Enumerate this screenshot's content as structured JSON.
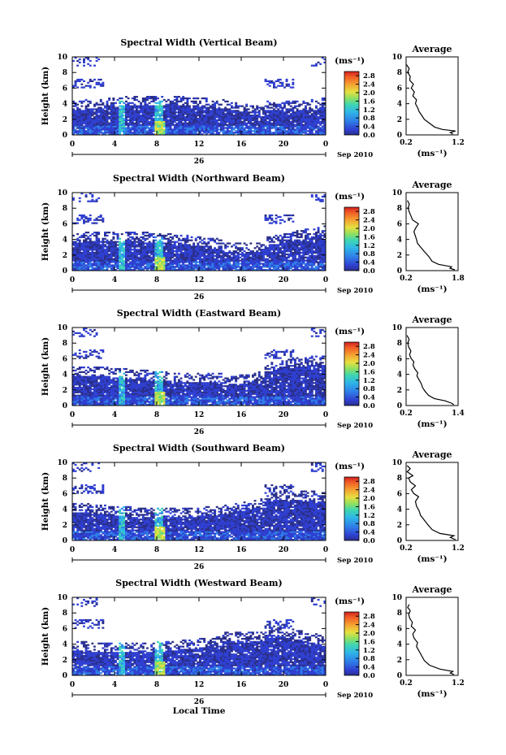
{
  "chart_data": [
    {
      "type": "heatmap",
      "title": "Spectral Width (Vertical Beam)",
      "ylabel": "Height (km)",
      "x_ticks": [
        "0",
        "4",
        "8",
        "12",
        "16",
        "20",
        "0"
      ],
      "y_ticks": [
        "0",
        "2",
        "4",
        "6",
        "8",
        "10"
      ],
      "xlim": [
        0,
        24
      ],
      "ylim": [
        0,
        10
      ],
      "date_label": "26",
      "date_suffix": "Sep 2010",
      "colorbar": {
        "label": "(ms⁻¹)",
        "ticks": [
          "2.8",
          "2.4",
          "2.0",
          "1.6",
          "1.2",
          "0.8",
          "0.4",
          "0.0"
        ],
        "range": [
          0,
          3.0
        ]
      },
      "profile": {
        "title": "Average",
        "xlabel": "(ms⁻¹)",
        "x_ticks": [
          "0.2",
          "1.2"
        ],
        "xlim": [
          0.2,
          1.2
        ],
        "y_ticks": [
          "0",
          "2",
          "4",
          "6",
          "8",
          "10"
        ],
        "points": [
          [
            1.1,
            0.1
          ],
          [
            1.05,
            0.3
          ],
          [
            1.15,
            0.5
          ],
          [
            0.9,
            0.7
          ],
          [
            0.75,
            1.0
          ],
          [
            0.65,
            1.5
          ],
          [
            0.55,
            2.0
          ],
          [
            0.5,
            2.5
          ],
          [
            0.45,
            3.0
          ],
          [
            0.42,
            3.5
          ],
          [
            0.38,
            4.0
          ],
          [
            0.4,
            4.5
          ],
          [
            0.33,
            5.0
          ],
          [
            0.36,
            5.5
          ],
          [
            0.3,
            6.0
          ],
          [
            0.34,
            6.5
          ],
          [
            0.27,
            7.0
          ],
          [
            0.28,
            7.5
          ],
          [
            0.23,
            8.0
          ],
          [
            0.26,
            8.5
          ],
          [
            0.21,
            9.0
          ]
        ]
      }
    },
    {
      "type": "heatmap",
      "title": "Spectral Width (Northward Beam)",
      "ylabel": "Height (km)",
      "x_ticks": [
        "0",
        "4",
        "8",
        "12",
        "16",
        "20",
        "0"
      ],
      "y_ticks": [
        "0",
        "2",
        "4",
        "6",
        "8",
        "10"
      ],
      "xlim": [
        0,
        24
      ],
      "ylim": [
        0,
        10
      ],
      "date_label": "26",
      "date_suffix": "Sep 2010",
      "colorbar": {
        "label": "(ms⁻¹)",
        "ticks": [
          "2.8",
          "2.4",
          "2.0",
          "1.6",
          "1.2",
          "0.8",
          "0.4",
          "0.0"
        ],
        "range": [
          0,
          3.0
        ]
      },
      "profile": {
        "title": "Average",
        "xlabel": "(ms⁻¹)",
        "x_ticks": [
          "0.2",
          "1.8"
        ],
        "xlim": [
          0.2,
          1.8
        ],
        "y_ticks": [
          "0",
          "2",
          "4",
          "6",
          "8",
          "10"
        ],
        "points": [
          [
            1.7,
            0.1
          ],
          [
            1.55,
            0.3
          ],
          [
            1.6,
            0.5
          ],
          [
            1.2,
            0.8
          ],
          [
            1.0,
            1.2
          ],
          [
            0.9,
            1.8
          ],
          [
            0.75,
            2.5
          ],
          [
            0.65,
            3.0
          ],
          [
            0.55,
            3.5
          ],
          [
            0.52,
            4.0
          ],
          [
            0.48,
            4.5
          ],
          [
            0.44,
            5.0
          ],
          [
            0.5,
            5.5
          ],
          [
            0.58,
            6.0
          ],
          [
            0.4,
            6.5
          ],
          [
            0.35,
            7.0
          ],
          [
            0.3,
            7.5
          ],
          [
            0.26,
            8.0
          ],
          [
            0.3,
            8.5
          ],
          [
            0.24,
            9.0
          ]
        ]
      }
    },
    {
      "type": "heatmap",
      "title": "Spectral Width (Eastward Beam)",
      "ylabel": "Height (km)",
      "x_ticks": [
        "0",
        "4",
        "8",
        "12",
        "16",
        "20",
        "0"
      ],
      "y_ticks": [
        "0",
        "2",
        "4",
        "6",
        "8",
        "10"
      ],
      "xlim": [
        0,
        24
      ],
      "ylim": [
        0,
        10
      ],
      "date_label": "26",
      "date_suffix": "Sep 2010",
      "colorbar": {
        "label": "(ms⁻¹)",
        "ticks": [
          "2.8",
          "2.4",
          "2.0",
          "1.6",
          "1.2",
          "0.8",
          "0.4",
          "0.0"
        ],
        "range": [
          0,
          3.0
        ]
      },
      "profile": {
        "title": "Average",
        "xlabel": "(ms⁻¹)",
        "x_ticks": [
          "0.2",
          "1.4"
        ],
        "xlim": [
          0.2,
          1.4
        ],
        "y_ticks": [
          "0",
          "2",
          "4",
          "6",
          "8",
          "10"
        ],
        "points": [
          [
            1.3,
            0.1
          ],
          [
            1.25,
            0.3
          ],
          [
            1.1,
            0.6
          ],
          [
            0.85,
            0.9
          ],
          [
            0.72,
            1.3
          ],
          [
            0.64,
            1.8
          ],
          [
            0.58,
            2.3
          ],
          [
            0.55,
            2.8
          ],
          [
            0.5,
            3.3
          ],
          [
            0.45,
            3.8
          ],
          [
            0.47,
            4.2
          ],
          [
            0.4,
            4.7
          ],
          [
            0.36,
            5.2
          ],
          [
            0.38,
            5.6
          ],
          [
            0.32,
            6.0
          ],
          [
            0.28,
            6.5
          ],
          [
            0.31,
            7.0
          ],
          [
            0.26,
            7.5
          ],
          [
            0.24,
            8.0
          ],
          [
            0.27,
            8.5
          ],
          [
            0.22,
            9.0
          ]
        ]
      }
    },
    {
      "type": "heatmap",
      "title": "Spectral Width (Southward Beam)",
      "ylabel": "Height (km)",
      "x_ticks": [
        "0",
        "4",
        "8",
        "12",
        "16",
        "20",
        "0"
      ],
      "y_ticks": [
        "0",
        "2",
        "4",
        "6",
        "8",
        "10"
      ],
      "xlim": [
        0,
        24
      ],
      "ylim": [
        0,
        10
      ],
      "date_label": "26",
      "date_suffix": "Sep 2010",
      "colorbar": {
        "label": "(ms⁻¹)",
        "ticks": [
          "2.8",
          "2.4",
          "2.0",
          "1.6",
          "1.2",
          "0.8",
          "0.4",
          "0.0"
        ],
        "range": [
          0,
          3.0
        ]
      },
      "profile": {
        "title": "Average",
        "xlabel": "(ms⁻¹)",
        "x_ticks": [
          "0.2",
          "1.2"
        ],
        "xlim": [
          0.2,
          1.2
        ],
        "y_ticks": [
          "0",
          "2",
          "4",
          "6",
          "8",
          "10"
        ],
        "points": [
          [
            1.15,
            0.1
          ],
          [
            1.05,
            0.4
          ],
          [
            1.12,
            0.6
          ],
          [
            0.85,
            0.9
          ],
          [
            0.7,
            1.4
          ],
          [
            0.62,
            2.0
          ],
          [
            0.55,
            2.6
          ],
          [
            0.48,
            3.2
          ],
          [
            0.45,
            3.8
          ],
          [
            0.4,
            4.4
          ],
          [
            0.38,
            5.0
          ],
          [
            0.44,
            5.6
          ],
          [
            0.35,
            6.0
          ],
          [
            0.3,
            6.5
          ],
          [
            0.38,
            7.0
          ],
          [
            0.28,
            7.5
          ],
          [
            0.25,
            8.0
          ],
          [
            0.33,
            8.3
          ],
          [
            0.22,
            8.8
          ],
          [
            0.28,
            9.2
          ],
          [
            0.22,
            9.6
          ]
        ]
      }
    },
    {
      "type": "heatmap",
      "title": "Spectral Width (Westward Beam)",
      "ylabel": "Height (km)",
      "x_ticks": [
        "0",
        "4",
        "8",
        "12",
        "16",
        "20",
        "0"
      ],
      "y_ticks": [
        "0",
        "2",
        "4",
        "6",
        "8",
        "10"
      ],
      "xlim": [
        0,
        24
      ],
      "ylim": [
        0,
        10
      ],
      "date_label": "26",
      "date_suffix": "Sep 2010",
      "colorbar": {
        "label": "(ms⁻¹)",
        "ticks": [
          "2.8",
          "2.4",
          "2.0",
          "1.6",
          "1.2",
          "0.8",
          "0.4",
          "0.0"
        ],
        "range": [
          0,
          3.0
        ]
      },
      "profile": {
        "title": "Average",
        "xlabel": "(ms⁻¹)",
        "x_ticks": [
          "0.2",
          "1.2"
        ],
        "xlim": [
          0.2,
          1.2
        ],
        "y_ticks": [
          "0",
          "2",
          "4",
          "6",
          "8",
          "10"
        ],
        "points": [
          [
            1.12,
            0.1
          ],
          [
            1.05,
            0.3
          ],
          [
            1.1,
            0.5
          ],
          [
            0.85,
            0.8
          ],
          [
            0.65,
            1.3
          ],
          [
            0.55,
            1.9
          ],
          [
            0.5,
            2.5
          ],
          [
            0.45,
            3.1
          ],
          [
            0.4,
            3.7
          ],
          [
            0.42,
            4.2
          ],
          [
            0.35,
            4.8
          ],
          [
            0.33,
            5.3
          ],
          [
            0.38,
            5.8
          ],
          [
            0.3,
            6.3
          ],
          [
            0.32,
            6.8
          ],
          [
            0.27,
            7.3
          ],
          [
            0.25,
            7.8
          ],
          [
            0.28,
            8.3
          ],
          [
            0.23,
            8.7
          ],
          [
            0.26,
            9.1
          ]
        ]
      }
    }
  ],
  "footer": {
    "xlabel": "Local Time"
  }
}
